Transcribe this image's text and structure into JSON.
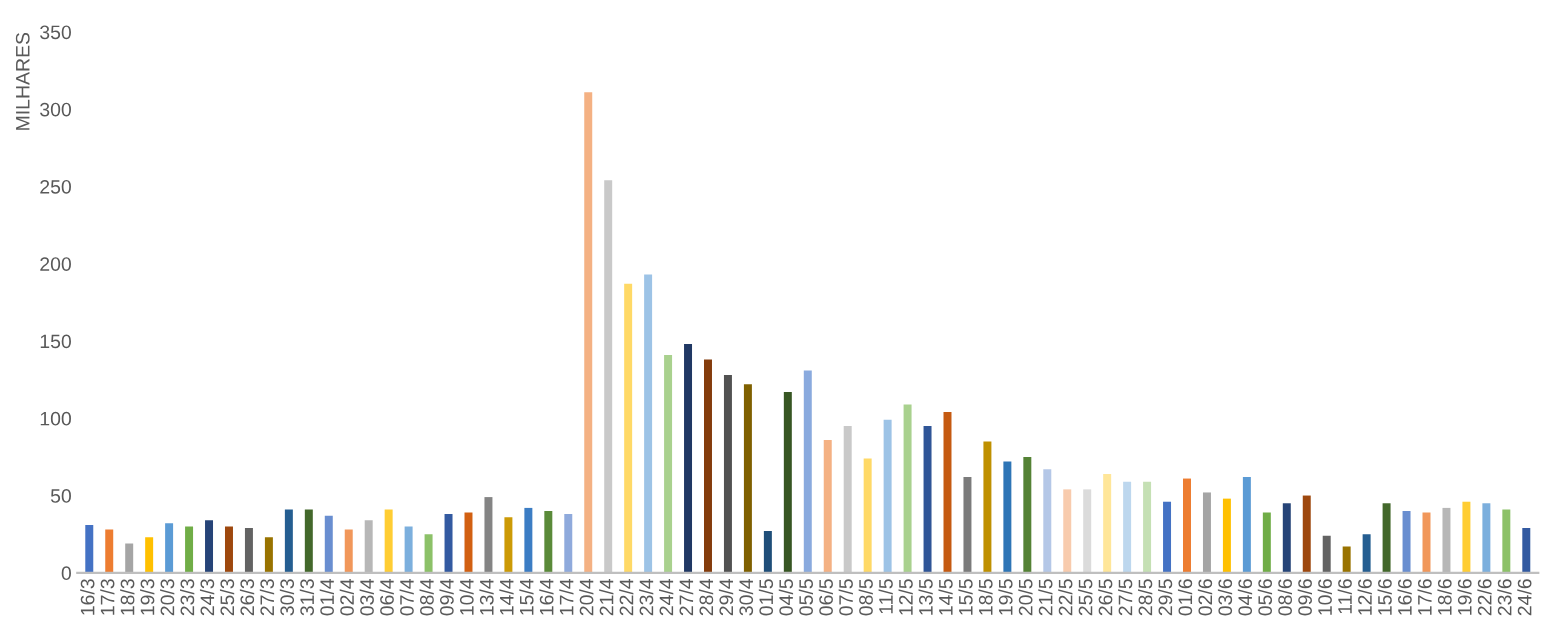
{
  "chart_data": {
    "type": "bar",
    "ylabel": "MILHARES",
    "categories": [
      "16/3",
      "17/3",
      "18/3",
      "19/3",
      "20/3",
      "23/3",
      "24/3",
      "25/3",
      "26/3",
      "27/3",
      "30/3",
      "31/3",
      "01/4",
      "02/4",
      "03/4",
      "06/4",
      "07/4",
      "08/4",
      "09/4",
      "10/4",
      "13/4",
      "14/4",
      "15/4",
      "16/4",
      "17/4",
      "20/4",
      "21/4",
      "22/4",
      "23/4",
      "24/4",
      "27/4",
      "28/4",
      "29/4",
      "30/4",
      "01/5",
      "04/5",
      "05/5",
      "06/5",
      "07/5",
      "08/5",
      "11/5",
      "12/5",
      "13/5",
      "14/5",
      "15/5",
      "18/5",
      "19/5",
      "20/5",
      "21/5",
      "22/5",
      "25/5",
      "26/5",
      "27/5",
      "28/5",
      "29/5",
      "01/6",
      "02/6",
      "03/6",
      "04/6",
      "05/6",
      "08/6",
      "09/6",
      "10/6",
      "11/6",
      "12/6",
      "15/6",
      "16/6",
      "17/6",
      "18/6",
      "19/6",
      "22/6",
      "23/6",
      "24/6"
    ],
    "values": [
      31,
      28,
      19,
      23,
      32,
      30,
      34,
      30,
      29,
      23,
      41,
      41,
      37,
      28,
      34,
      41,
      30,
      25,
      38,
      39,
      49,
      36,
      42,
      40,
      38,
      311,
      254,
      187,
      193,
      141,
      148,
      138,
      128,
      122,
      27,
      117,
      131,
      86,
      95,
      74,
      99,
      109,
      95,
      104,
      62,
      85,
      72,
      75,
      67,
      54,
      54,
      64,
      59,
      59,
      46,
      61,
      52,
      48,
      62,
      39,
      45,
      50,
      24,
      17,
      25,
      45,
      40,
      39,
      42,
      46,
      45,
      41,
      29
    ],
    "colors": [
      "#4472c4",
      "#ed7d31",
      "#a5a5a5",
      "#ffc000",
      "#5b9bd5",
      "#70ad47",
      "#264478",
      "#9e480e",
      "#636363",
      "#997300",
      "#255e91",
      "#43682b",
      "#698ed0",
      "#f1975a",
      "#b7b7b7",
      "#ffcd33",
      "#7cafdd",
      "#8cc168",
      "#335aa1",
      "#d26012",
      "#848484",
      "#cc9a06",
      "#3c7dc4",
      "#5a8a39",
      "#8faadc",
      "#f4b183",
      "#c9c9c9",
      "#ffd966",
      "#9dc3e6",
      "#a9d18e",
      "#203864",
      "#843c0c",
      "#525252",
      "#7f6000",
      "#1f4e79",
      "#375623",
      "#8aaade",
      "#f4b183",
      "#c9c9c9",
      "#ffd966",
      "#9dc3e6",
      "#a9d18e",
      "#2f5597",
      "#c55a11",
      "#7b7b7b",
      "#bf9000",
      "#2e75b6",
      "#548235",
      "#b4c7e7",
      "#f8cbad",
      "#dbdbdb",
      "#ffe699",
      "#bdd7ee",
      "#c5e0b4",
      "#4472c4",
      "#ed7d31",
      "#a5a5a5",
      "#ffc000",
      "#5b9bd5",
      "#70ad47",
      "#264478",
      "#9e480e",
      "#636363",
      "#997300",
      "#255e91",
      "#43682b",
      "#698ed0",
      "#f1975a",
      "#b7b7b7",
      "#ffcd33",
      "#7cafdd",
      "#8cc168",
      "#335aa1"
    ],
    "ylim": [
      0,
      350
    ],
    "yticks": [
      0,
      50,
      100,
      150,
      200,
      250,
      300,
      350
    ],
    "grid": false
  }
}
